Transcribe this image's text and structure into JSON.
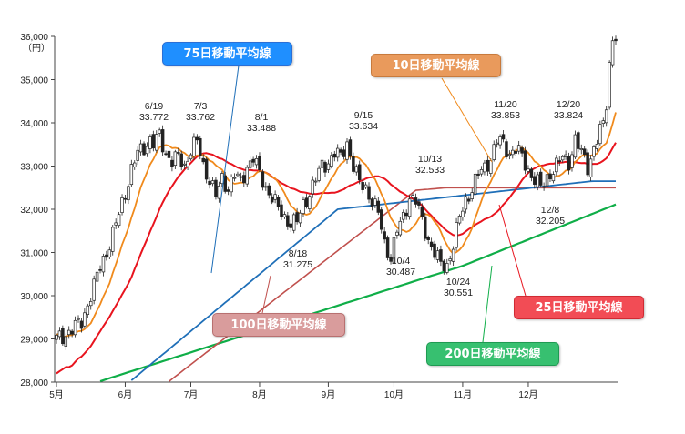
{
  "chart_data": {
    "type": "candlestick",
    "unit_label": "（円）",
    "ylim": [
      28000,
      36000
    ],
    "y_ticks": [
      "28,000",
      "29,000",
      "30,000",
      "31,000",
      "32,000",
      "33,000",
      "34,000",
      "35,000",
      "36,000"
    ],
    "x_ticks": [
      "5月",
      "6月",
      "7月",
      "8月",
      "9月",
      "10月",
      "11月",
      "12月"
    ],
    "grid": false,
    "colors": {
      "ma10": "#f08a1c",
      "ma25": "#e8141e",
      "ma75": "#1f6fb8",
      "ma100": "#c0504d",
      "ma200": "#0fae48",
      "candle": "#222222"
    },
    "legend_labels": {
      "ma75": "75日移動平均線",
      "ma10": "10日移動平均線",
      "ma100": "100日移動平均線",
      "ma25": "25日移動平均線",
      "ma200": "200日移動平均線"
    },
    "annotations": [
      {
        "date": "6/19",
        "value": "33.772"
      },
      {
        "date": "7/3",
        "value": "33.762"
      },
      {
        "date": "8/1",
        "value": "33.488"
      },
      {
        "date": "8/18",
        "value": "31.275"
      },
      {
        "date": "9/15",
        "value": "33.634"
      },
      {
        "date": "10/4",
        "value": "30.487"
      },
      {
        "date": "10/13",
        "value": "32.533"
      },
      {
        "date": "10/24",
        "value": "30.551"
      },
      {
        "date": "11/20",
        "value": "33.853"
      },
      {
        "date": "12/8",
        "value": "32.205"
      },
      {
        "date": "12/20",
        "value": "33.824"
      }
    ],
    "closes_anchor": [
      [
        0,
        29000
      ],
      [
        4,
        29150
      ],
      [
        8,
        29400
      ],
      [
        10,
        29800
      ],
      [
        12,
        30200
      ],
      [
        14,
        30700
      ],
      [
        16,
        31000
      ],
      [
        18,
        31400
      ],
      [
        20,
        31900
      ],
      [
        22,
        32400
      ],
      [
        24,
        32900
      ],
      [
        26,
        33300
      ],
      [
        28,
        33450
      ],
      [
        30,
        33600
      ],
      [
        31,
        33500
      ],
      [
        33,
        33700
      ],
      [
        35,
        33300
      ],
      [
        37,
        33100
      ],
      [
        39,
        33200
      ],
      [
        41,
        33000
      ],
      [
        43,
        33400
      ],
      [
        45,
        33550
      ],
      [
        47,
        33000
      ],
      [
        49,
        32700
      ],
      [
        51,
        32300
      ],
      [
        53,
        32700
      ],
      [
        55,
        32500
      ],
      [
        57,
        32800
      ],
      [
        59,
        32600
      ],
      [
        61,
        33000
      ],
      [
        63,
        33200
      ],
      [
        65,
        32800
      ],
      [
        67,
        32500
      ],
      [
        69,
        32300
      ],
      [
        71,
        32000
      ],
      [
        73,
        31800
      ],
      [
        75,
        31700
      ],
      [
        77,
        31700
      ],
      [
        79,
        32100
      ],
      [
        81,
        32400
      ],
      [
        83,
        32700
      ],
      [
        85,
        33000
      ],
      [
        87,
        33100
      ],
      [
        89,
        33300
      ],
      [
        91,
        33200
      ],
      [
        93,
        33550
      ],
      [
        95,
        33000
      ],
      [
        97,
        32600
      ],
      [
        99,
        32500
      ],
      [
        101,
        32200
      ],
      [
        103,
        31900
      ],
      [
        105,
        31200
      ],
      [
        107,
        30900
      ],
      [
        109,
        31500
      ],
      [
        111,
        31800
      ],
      [
        113,
        32300
      ],
      [
        115,
        32200
      ],
      [
        117,
        31700
      ],
      [
        119,
        31300
      ],
      [
        121,
        31000
      ],
      [
        123,
        30700
      ],
      [
        125,
        30700
      ],
      [
        127,
        31200
      ],
      [
        129,
        31800
      ],
      [
        131,
        32200
      ],
      [
        133,
        32500
      ],
      [
        135,
        32800
      ],
      [
        137,
        32950
      ],
      [
        139,
        33200
      ],
      [
        141,
        33600
      ],
      [
        143,
        33500
      ],
      [
        145,
        33300
      ],
      [
        147,
        33400
      ],
      [
        149,
        33200
      ],
      [
        151,
        32900
      ],
      [
        153,
        32700
      ],
      [
        155,
        32500
      ],
      [
        156,
        32600
      ],
      [
        158,
        32850
      ],
      [
        160,
        33000
      ],
      [
        162,
        33200
      ],
      [
        164,
        33100
      ],
      [
        166,
        33600
      ],
      [
        168,
        33300
      ],
      [
        170,
        33000
      ],
      [
        172,
        33400
      ],
      [
        174,
        33800
      ],
      [
        176,
        34300
      ],
      [
        177,
        35400
      ],
      [
        178,
        35900
      ]
    ]
  }
}
